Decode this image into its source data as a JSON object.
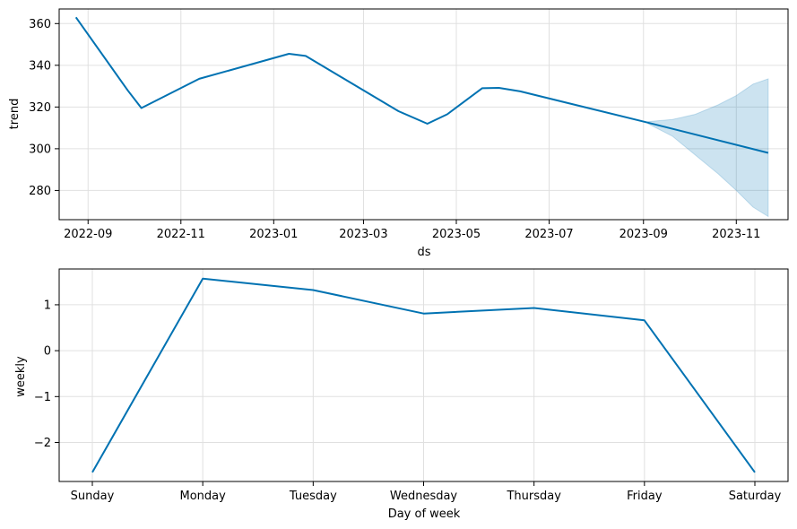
{
  "chart_data": [
    {
      "type": "line",
      "xlabel": "ds",
      "ylabel": "trend",
      "x_ticks": [
        "2022-09",
        "2022-11",
        "2023-01",
        "2023-03",
        "2023-05",
        "2023-07",
        "2023-09",
        "2023-11"
      ],
      "y_ticks": [
        280,
        300,
        320,
        340,
        360
      ],
      "ylim": [
        266,
        367
      ],
      "xlim": [
        "2022-08-13",
        "2023-12-05"
      ],
      "grid": true,
      "series": [
        {
          "values": [
            [
              "2022-08-24",
              363
            ],
            [
              "2022-09-27",
              328
            ],
            [
              "2022-10-06",
              319.5
            ],
            [
              "2022-11-13",
              333.5
            ],
            [
              "2023-01-11",
              345.5
            ],
            [
              "2023-01-22",
              344.5
            ],
            [
              "2023-03-24",
              318
            ],
            [
              "2023-04-12",
              312
            ],
            [
              "2023-04-25",
              316.5
            ],
            [
              "2023-05-18",
              329
            ],
            [
              "2023-05-29",
              329.2
            ],
            [
              "2023-06-12",
              327.5
            ],
            [
              "2023-09-04",
              312.5
            ],
            [
              "2023-11-22",
              298
            ]
          ]
        }
      ],
      "uncertainty_band": {
        "upper": [
          [
            "2023-09-04",
            313
          ],
          [
            "2023-09-20",
            314
          ],
          [
            "2023-10-05",
            316.5
          ],
          [
            "2023-10-20",
            321
          ],
          [
            "2023-11-01",
            325.5
          ],
          [
            "2023-11-12",
            331
          ],
          [
            "2023-11-22",
            333.5
          ]
        ],
        "lower": [
          [
            "2023-09-04",
            312
          ],
          [
            "2023-09-20",
            306
          ],
          [
            "2023-10-05",
            297
          ],
          [
            "2023-10-20",
            288
          ],
          [
            "2023-11-01",
            280
          ],
          [
            "2023-11-12",
            272
          ],
          [
            "2023-11-22",
            267.5
          ]
        ]
      }
    },
    {
      "type": "line",
      "xlabel": "Day of week",
      "ylabel": "weekly",
      "categories": [
        "Sunday",
        "Monday",
        "Tuesday",
        "Wednesday",
        "Thursday",
        "Friday",
        "Saturday"
      ],
      "y_ticks": [
        -2,
        -1,
        0,
        1
      ],
      "y_tick_labels": [
        "−2",
        "−1",
        "0",
        "1"
      ],
      "ylim": [
        -2.85,
        1.78
      ],
      "grid": true,
      "series": [
        {
          "values": [
            -2.65,
            1.57,
            1.32,
            0.81,
            0.93,
            0.66,
            -2.65
          ]
        }
      ]
    }
  ],
  "colors": {
    "line": "#0072b2",
    "band": "#0072b2",
    "grid": "#e0e0e0",
    "axis": "#000000"
  }
}
